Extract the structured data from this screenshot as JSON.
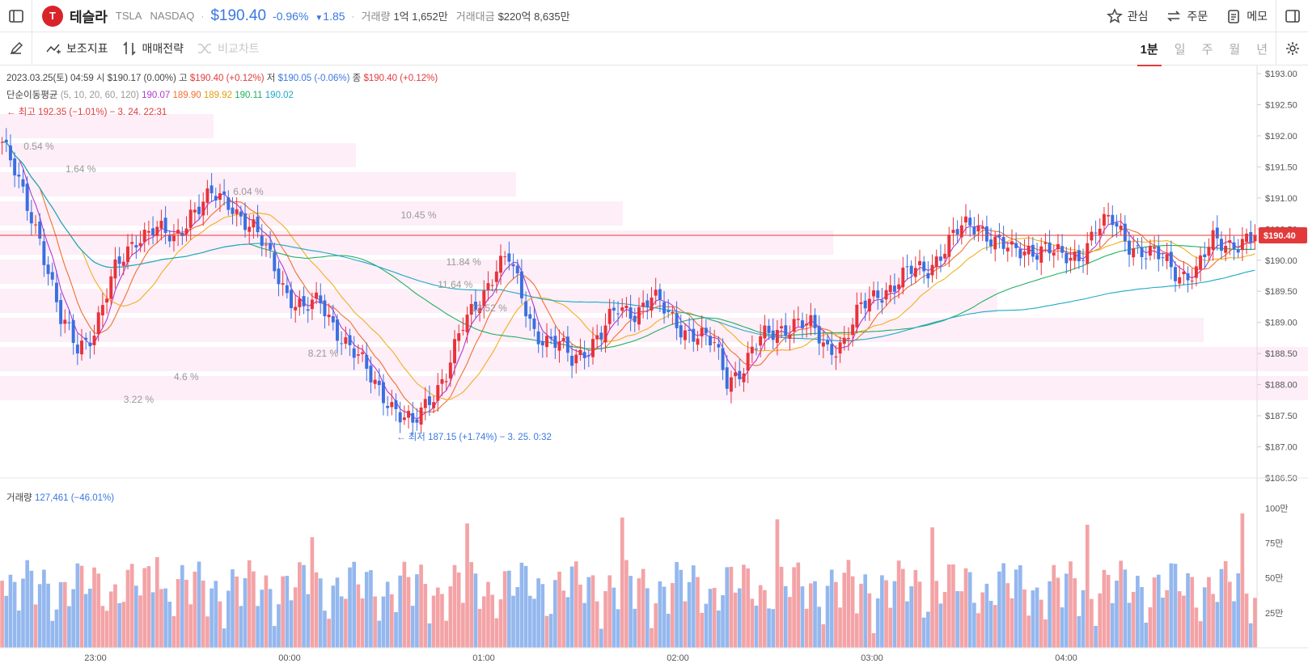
{
  "header": {
    "logo_letter": "T",
    "name": "테슬라",
    "symbol": "TSLA",
    "exchange": "NASDAQ",
    "price": "$190.40",
    "change_pct": "-0.96%",
    "change_abs": "1.85",
    "volume_label": "거래량",
    "volume_value": "1억 1,652만",
    "amount_label": "거래대금",
    "amount_value": "$220억 8,635만",
    "actions": {
      "watch": "관심",
      "order": "주문",
      "memo": "메모"
    }
  },
  "toolbar": {
    "indicators": "보조지표",
    "strategy": "매매전략",
    "compare": "비교차트",
    "periods": [
      "1분",
      "일",
      "주",
      "월",
      "년"
    ],
    "active_period": "1분"
  },
  "legend": {
    "date": "2023.03.25(토) 04:59",
    "open_label": "시",
    "open": "$190.17 (0.00%)",
    "high_label": "고",
    "high": "$190.40 (+0.12%)",
    "low_label": "저",
    "low": "$190.05 (-0.06%)",
    "close_label": "종",
    "close": "$190.40 (+0.12%)",
    "ma_label": "단순이동평균",
    "ma_periods": "(5, 10, 20, 60, 120)",
    "ma_values": [
      "190.07",
      "189.90",
      "189.92",
      "190.11",
      "190.02"
    ],
    "max_note": "← 최고 192.35 (−1.01%) − 3. 24. 22:31",
    "min_note": "← 최저 187.15 (+1.74%) − 3. 25. 0:32",
    "volume_label": "거래량",
    "volume_value": "127,461 (−46.01%)"
  },
  "colors": {
    "up": "#e8323a",
    "down": "#3a6fe0",
    "ma": [
      "#b03ad0",
      "#f07030",
      "#f0b020",
      "#20b060",
      "#20a8c8"
    ],
    "price_line": "#e23a3a"
  },
  "chart_data": {
    "type": "candlestick",
    "x_ticks": [
      "23:00",
      "00:00",
      "01:00",
      "02:00",
      "03:00",
      "04:00"
    ],
    "y_ticks": [
      "$193.00",
      "$192.50",
      "$192.00",
      "$191.50",
      "$191.00",
      "$190.50",
      "$190.00",
      "$189.50",
      "$189.00",
      "$188.50",
      "$188.00",
      "$187.50",
      "$187.00",
      "$186.50"
    ],
    "y_range": [
      186.5,
      193.0
    ],
    "current_price_tag": "$190.40",
    "current_price": 190.4,
    "volume_ticks": [
      "100만",
      "75만",
      "50만",
      "25만"
    ],
    "volume_range": [
      0,
      110
    ],
    "close_path": [
      [
        0,
        191.9
      ],
      [
        4,
        191.2
      ],
      [
        9,
        190.4
      ],
      [
        14,
        189.0
      ],
      [
        18,
        188.6
      ],
      [
        22,
        188.9
      ],
      [
        27,
        189.8
      ],
      [
        32,
        190.4
      ],
      [
        36,
        190.5
      ],
      [
        41,
        190.3
      ],
      [
        45,
        190.8
      ],
      [
        50,
        191.0
      ],
      [
        55,
        190.9
      ],
      [
        60,
        190.5
      ],
      [
        64,
        190.0
      ],
      [
        68,
        189.5
      ],
      [
        72,
        189.2
      ],
      [
        76,
        189.3
      ],
      [
        80,
        188.9
      ],
      [
        84,
        188.5
      ],
      [
        88,
        188.1
      ],
      [
        92,
        187.8
      ],
      [
        95,
        187.5
      ],
      [
        98,
        187.3
      ],
      [
        102,
        187.8
      ],
      [
        106,
        188.2
      ],
      [
        110,
        188.9
      ],
      [
        114,
        189.4
      ],
      [
        118,
        189.9
      ],
      [
        121,
        190.0
      ],
      [
        124,
        189.4
      ],
      [
        127,
        188.9
      ],
      [
        130,
        188.7
      ],
      [
        133,
        188.6
      ],
      [
        136,
        188.4
      ],
      [
        139,
        188.6
      ],
      [
        143,
        188.8
      ],
      [
        147,
        189.2
      ],
      [
        151,
        189.2
      ],
      [
        155,
        189.4
      ],
      [
        159,
        189.1
      ],
      [
        163,
        188.9
      ],
      [
        166,
        188.8
      ],
      [
        170,
        188.6
      ],
      [
        173,
        188.1
      ],
      [
        177,
        188.3
      ],
      [
        181,
        188.7
      ],
      [
        185,
        188.9
      ],
      [
        189,
        189.0
      ],
      [
        193,
        188.9
      ],
      [
        197,
        188.6
      ],
      [
        201,
        188.7
      ],
      [
        205,
        189.2
      ],
      [
        209,
        189.5
      ],
      [
        213,
        189.6
      ],
      [
        217,
        189.8
      ],
      [
        221,
        189.9
      ],
      [
        225,
        190.2
      ],
      [
        229,
        190.5
      ],
      [
        233,
        190.6
      ],
      [
        237,
        190.3
      ],
      [
        241,
        190.1
      ],
      [
        245,
        190.2
      ],
      [
        249,
        190.2
      ],
      [
        253,
        190.0
      ],
      [
        257,
        190.1
      ],
      [
        261,
        190.5
      ],
      [
        265,
        190.6
      ],
      [
        269,
        190.3
      ],
      [
        273,
        190.1
      ],
      [
        277,
        190.0
      ],
      [
        281,
        189.8
      ],
      [
        285,
        189.8
      ],
      [
        289,
        190.3
      ]
    ],
    "range_labels": [
      {
        "text": "0.54 %",
        "bar": 4
      },
      {
        "text": "1.64 %",
        "bar": 14
      },
      {
        "text": "6.04 %",
        "bar": 54
      },
      {
        "text": "10.45 %",
        "bar": 94
      },
      {
        "text": "11.84 %",
        "bar": 106
      },
      {
        "text": "11.64 %",
        "bar": 104
      },
      {
        "text": "12.52 %",
        "bar": 112
      },
      {
        "text": "8.21 %",
        "bar": 73
      },
      {
        "text": "4.6 %",
        "bar": 41
      },
      {
        "text": "3.22 %",
        "bar": 29
      }
    ]
  }
}
